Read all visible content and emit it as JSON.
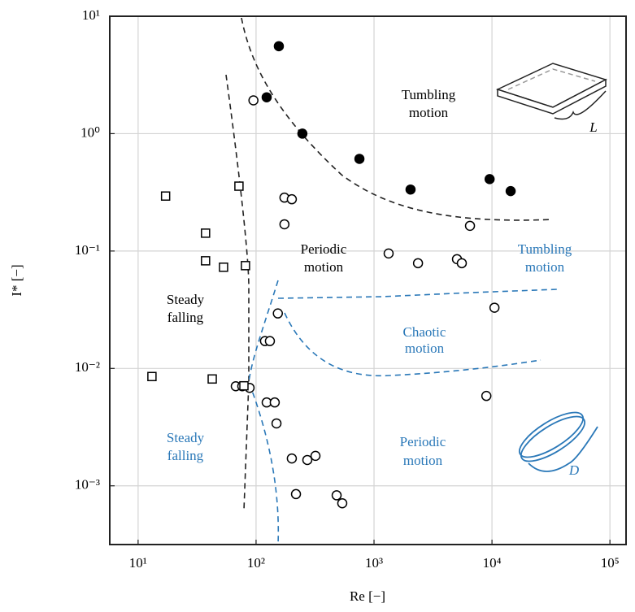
{
  "chart_data": {
    "type": "scatter",
    "xlabel": "Re [−]",
    "ylabel": "I* [−]",
    "log_x": true,
    "log_y": true,
    "grid": true,
    "xlim": [
      5.75,
      137000
    ],
    "ylim": [
      0.000316,
      10
    ],
    "xticks": [
      {
        "value": 10,
        "label": "10¹"
      },
      {
        "value": 100,
        "label": "10²"
      },
      {
        "value": 1000,
        "label": "10³"
      },
      {
        "value": 10000,
        "label": "10⁴"
      },
      {
        "value": 100000,
        "label": "10⁵"
      }
    ],
    "yticks": [
      {
        "value": 0.001,
        "label": "10⁻³"
      },
      {
        "value": 0.01,
        "label": "10⁻²"
      },
      {
        "value": 0.1,
        "label": "10⁻¹"
      },
      {
        "value": 1,
        "label": "10⁰"
      },
      {
        "value": 10,
        "label": "10¹"
      }
    ],
    "series": [
      {
        "marker": "filled-circle",
        "color": "#000000",
        "x": [
          156,
          123,
          247,
          752,
          2040,
          9550,
          14400
        ],
        "y": [
          5.56,
          2.04,
          1.0,
          0.61,
          0.334,
          0.41,
          0.324
        ]
      },
      {
        "marker": "open-circle",
        "color": "#000000",
        "x": [
          95,
          174,
          201,
          174,
          6510,
          1330,
          2360,
          5050,
          5550,
          153,
          10500,
          119,
          131,
          67.3,
          76.4,
          88.1,
          123,
          144,
          149,
          8960,
          201,
          272,
          319,
          218,
          482,
          538
        ],
        "y": [
          1.92,
          0.285,
          0.276,
          0.169,
          0.164,
          0.0953,
          0.0788,
          0.0853,
          0.0788,
          0.0294,
          0.0329,
          0.0171,
          0.0171,
          0.00705,
          0.00705,
          0.00683,
          0.00513,
          0.00513,
          0.0034,
          0.00583,
          0.00171,
          0.00166,
          0.0018,
          0.00085,
          0.00083,
          0.00071
        ]
      },
      {
        "marker": "open-square",
        "color": "#000000",
        "x": [
          17.1,
          37.3,
          71.6,
          37.3,
          53,
          81.3,
          13.1,
          42.5,
          78.9
        ],
        "y": [
          0.294,
          0.142,
          0.357,
          0.0826,
          0.0728,
          0.0751,
          0.00853,
          0.00813,
          0.00711
        ]
      }
    ],
    "annotations": [
      {
        "lines": [
          "Tumbling",
          "motion"
        ],
        "color": "#000000"
      },
      {
        "lines": [
          "Periodic",
          "motion"
        ],
        "color": "#000000"
      },
      {
        "lines": [
          "Steady",
          "falling"
        ],
        "color": "#000000"
      },
      {
        "lines": [
          "Tumbling",
          "motion"
        ],
        "color": "#2a78b8"
      },
      {
        "lines": [
          "Chaotic",
          "motion"
        ],
        "color": "#2a78b8"
      },
      {
        "lines": [
          "Steady",
          "falling"
        ],
        "color": "#2a78b8"
      },
      {
        "lines": [
          "Periodic",
          "motion"
        ],
        "color": "#2a78b8"
      },
      {
        "lines": [
          "L"
        ],
        "color": "#000000"
      },
      {
        "lines": [
          "D"
        ],
        "color": "#2a78b8"
      }
    ]
  }
}
